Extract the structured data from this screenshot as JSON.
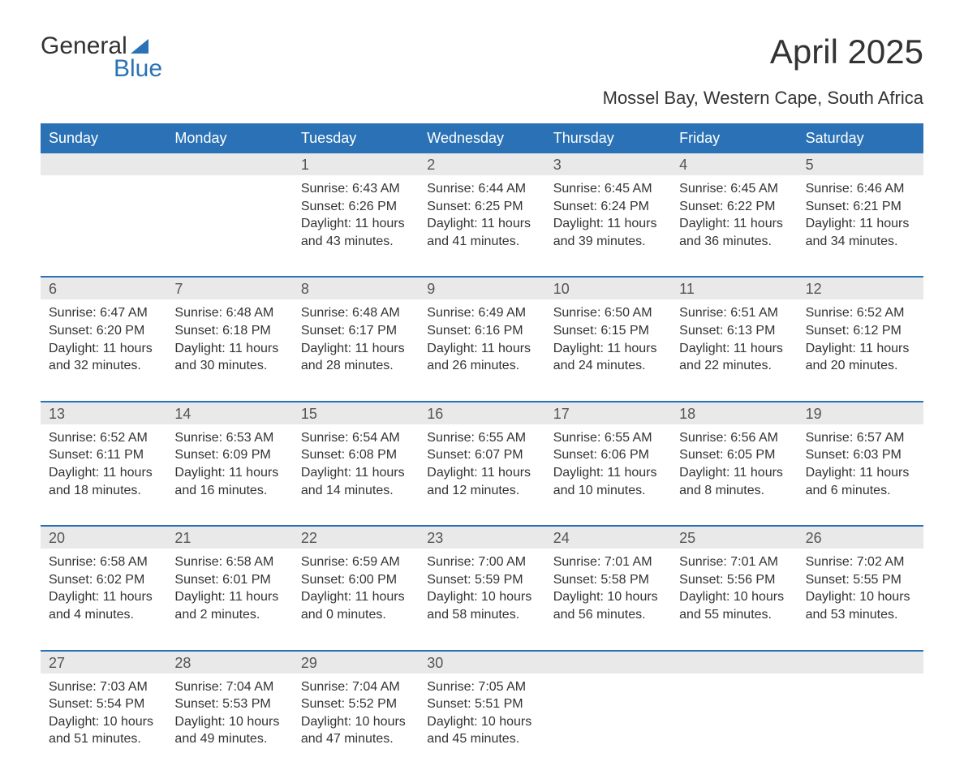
{
  "logo": {
    "text1": "General",
    "text2": "Blue"
  },
  "title": "April 2025",
  "subtitle": "Mossel Bay, Western Cape, South Africa",
  "colors": {
    "header_bg": "#2a72b5",
    "header_text": "#ffffff",
    "daynum_bg": "#e9e9e9",
    "body_text": "#333333",
    "rule": "#2a72b5"
  },
  "day_headers": [
    "Sunday",
    "Monday",
    "Tuesday",
    "Wednesday",
    "Thursday",
    "Friday",
    "Saturday"
  ],
  "weeks": [
    [
      null,
      null,
      {
        "n": "1",
        "sunrise": "6:43 AM",
        "sunset": "6:26 PM",
        "daylight": "11 hours and 43 minutes."
      },
      {
        "n": "2",
        "sunrise": "6:44 AM",
        "sunset": "6:25 PM",
        "daylight": "11 hours and 41 minutes."
      },
      {
        "n": "3",
        "sunrise": "6:45 AM",
        "sunset": "6:24 PM",
        "daylight": "11 hours and 39 minutes."
      },
      {
        "n": "4",
        "sunrise": "6:45 AM",
        "sunset": "6:22 PM",
        "daylight": "11 hours and 36 minutes."
      },
      {
        "n": "5",
        "sunrise": "6:46 AM",
        "sunset": "6:21 PM",
        "daylight": "11 hours and 34 minutes."
      }
    ],
    [
      {
        "n": "6",
        "sunrise": "6:47 AM",
        "sunset": "6:20 PM",
        "daylight": "11 hours and 32 minutes."
      },
      {
        "n": "7",
        "sunrise": "6:48 AM",
        "sunset": "6:18 PM",
        "daylight": "11 hours and 30 minutes."
      },
      {
        "n": "8",
        "sunrise": "6:48 AM",
        "sunset": "6:17 PM",
        "daylight": "11 hours and 28 minutes."
      },
      {
        "n": "9",
        "sunrise": "6:49 AM",
        "sunset": "6:16 PM",
        "daylight": "11 hours and 26 minutes."
      },
      {
        "n": "10",
        "sunrise": "6:50 AM",
        "sunset": "6:15 PM",
        "daylight": "11 hours and 24 minutes."
      },
      {
        "n": "11",
        "sunrise": "6:51 AM",
        "sunset": "6:13 PM",
        "daylight": "11 hours and 22 minutes."
      },
      {
        "n": "12",
        "sunrise": "6:52 AM",
        "sunset": "6:12 PM",
        "daylight": "11 hours and 20 minutes."
      }
    ],
    [
      {
        "n": "13",
        "sunrise": "6:52 AM",
        "sunset": "6:11 PM",
        "daylight": "11 hours and 18 minutes."
      },
      {
        "n": "14",
        "sunrise": "6:53 AM",
        "sunset": "6:09 PM",
        "daylight": "11 hours and 16 minutes."
      },
      {
        "n": "15",
        "sunrise": "6:54 AM",
        "sunset": "6:08 PM",
        "daylight": "11 hours and 14 minutes."
      },
      {
        "n": "16",
        "sunrise": "6:55 AM",
        "sunset": "6:07 PM",
        "daylight": "11 hours and 12 minutes."
      },
      {
        "n": "17",
        "sunrise": "6:55 AM",
        "sunset": "6:06 PM",
        "daylight": "11 hours and 10 minutes."
      },
      {
        "n": "18",
        "sunrise": "6:56 AM",
        "sunset": "6:05 PM",
        "daylight": "11 hours and 8 minutes."
      },
      {
        "n": "19",
        "sunrise": "6:57 AM",
        "sunset": "6:03 PM",
        "daylight": "11 hours and 6 minutes."
      }
    ],
    [
      {
        "n": "20",
        "sunrise": "6:58 AM",
        "sunset": "6:02 PM",
        "daylight": "11 hours and 4 minutes."
      },
      {
        "n": "21",
        "sunrise": "6:58 AM",
        "sunset": "6:01 PM",
        "daylight": "11 hours and 2 minutes."
      },
      {
        "n": "22",
        "sunrise": "6:59 AM",
        "sunset": "6:00 PM",
        "daylight": "11 hours and 0 minutes."
      },
      {
        "n": "23",
        "sunrise": "7:00 AM",
        "sunset": "5:59 PM",
        "daylight": "10 hours and 58 minutes."
      },
      {
        "n": "24",
        "sunrise": "7:01 AM",
        "sunset": "5:58 PM",
        "daylight": "10 hours and 56 minutes."
      },
      {
        "n": "25",
        "sunrise": "7:01 AM",
        "sunset": "5:56 PM",
        "daylight": "10 hours and 55 minutes."
      },
      {
        "n": "26",
        "sunrise": "7:02 AM",
        "sunset": "5:55 PM",
        "daylight": "10 hours and 53 minutes."
      }
    ],
    [
      {
        "n": "27",
        "sunrise": "7:03 AM",
        "sunset": "5:54 PM",
        "daylight": "10 hours and 51 minutes."
      },
      {
        "n": "28",
        "sunrise": "7:04 AM",
        "sunset": "5:53 PM",
        "daylight": "10 hours and 49 minutes."
      },
      {
        "n": "29",
        "sunrise": "7:04 AM",
        "sunset": "5:52 PM",
        "daylight": "10 hours and 47 minutes."
      },
      {
        "n": "30",
        "sunrise": "7:05 AM",
        "sunset": "5:51 PM",
        "daylight": "10 hours and 45 minutes."
      },
      null,
      null,
      null
    ]
  ],
  "labels": {
    "sunrise": "Sunrise:",
    "sunset": "Sunset:",
    "daylight": "Daylight:"
  }
}
